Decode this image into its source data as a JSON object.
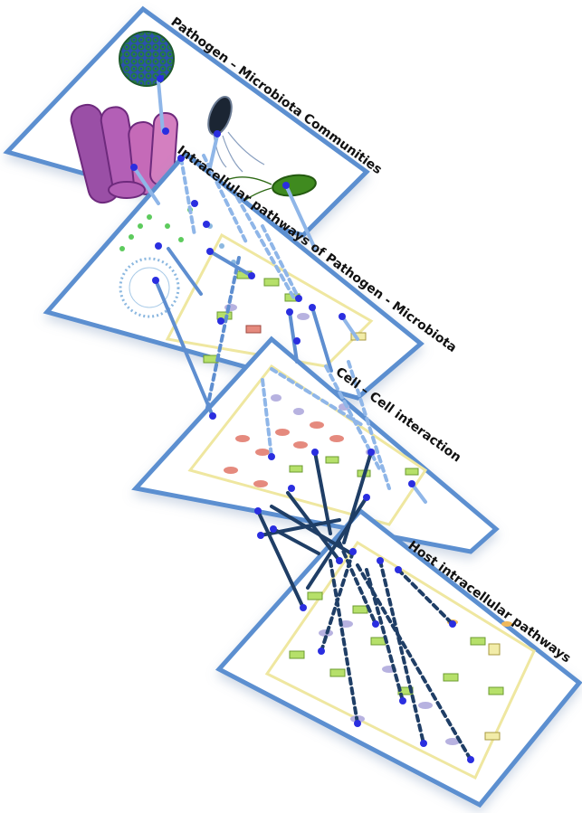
{
  "layers": [
    {
      "id": "pathogen",
      "title": "Pathogen – Microbiota Communities"
    },
    {
      "id": "intracellular-pathogen",
      "title": "Intracellular pathways of Pathogen - Microbiota"
    },
    {
      "id": "cell-cell",
      "title": "Cell – Cell interaction"
    },
    {
      "id": "host",
      "title": "Host intracellular pathways"
    }
  ],
  "colors": {
    "frame": "#5b8fd0",
    "light_link": "#8fb6e8",
    "dark_link": "#1f3e66",
    "node": "#2a2ee0",
    "pathway_box": "#f2eca8",
    "green_node": "#b6e06a",
    "red_node": "#e58a7e",
    "purple_node": "#b7b2e0"
  }
}
